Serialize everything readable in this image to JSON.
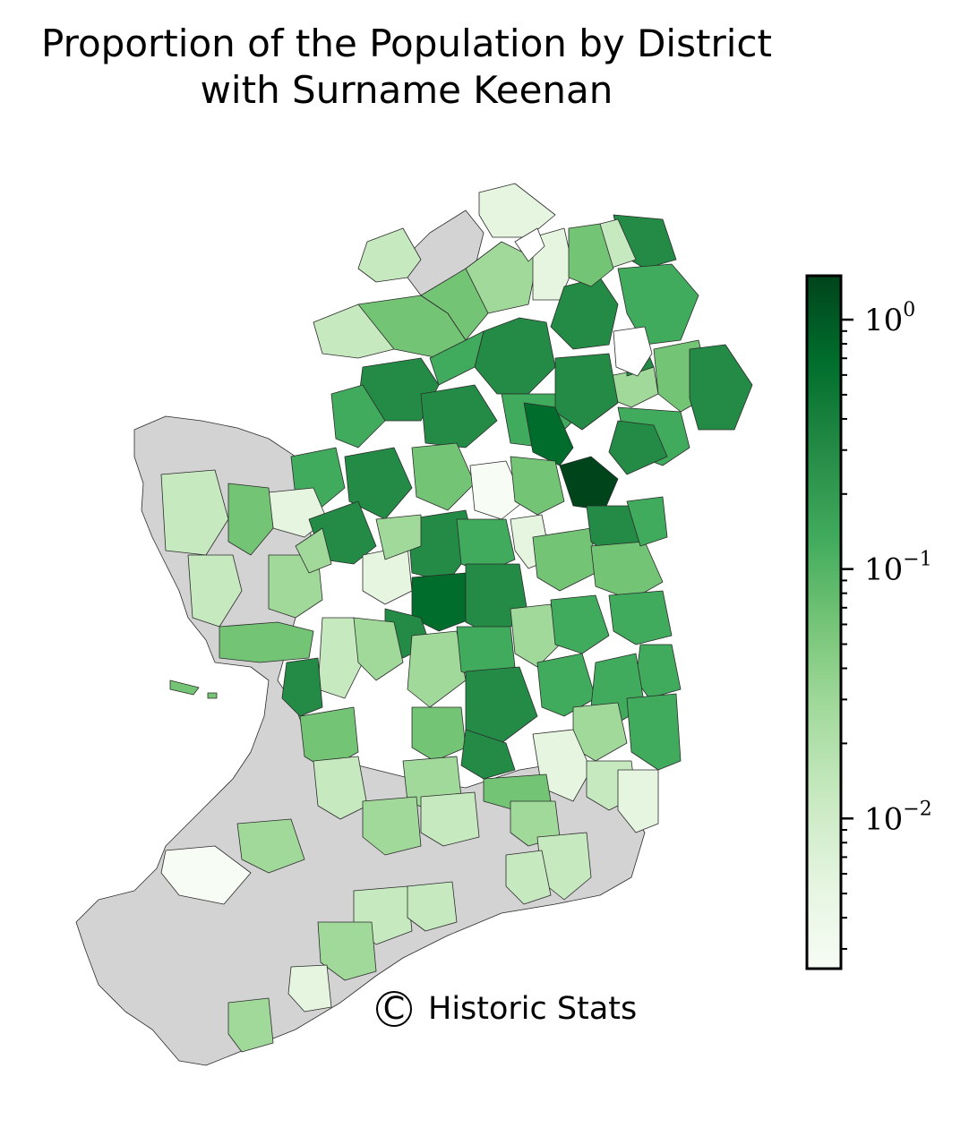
{
  "title": {
    "line1": "Proportion of the Population by District",
    "line2": "with Surname Keenan"
  },
  "credit": {
    "symbol": "C",
    "text": "Historic Stats"
  },
  "colorbar": {
    "scale": "log",
    "range": [
      0.0025,
      1.5
    ],
    "colormap": [
      "#f7fcf5",
      "#e5f5e0",
      "#c7e9c0",
      "#a1d99b",
      "#74c476",
      "#41ab5d",
      "#238b45",
      "#006d2c",
      "#00441b"
    ],
    "ticks": [
      {
        "value": 1,
        "base": "10",
        "exponent": "0"
      },
      {
        "value": 0.1,
        "base": "10",
        "exponent": "−1"
      },
      {
        "value": 0.01,
        "base": "10",
        "exponent": "−2"
      }
    ]
  },
  "legend": {
    "no_data_color": "#d3d3d3",
    "border_color": "#2b2b2b"
  }
}
